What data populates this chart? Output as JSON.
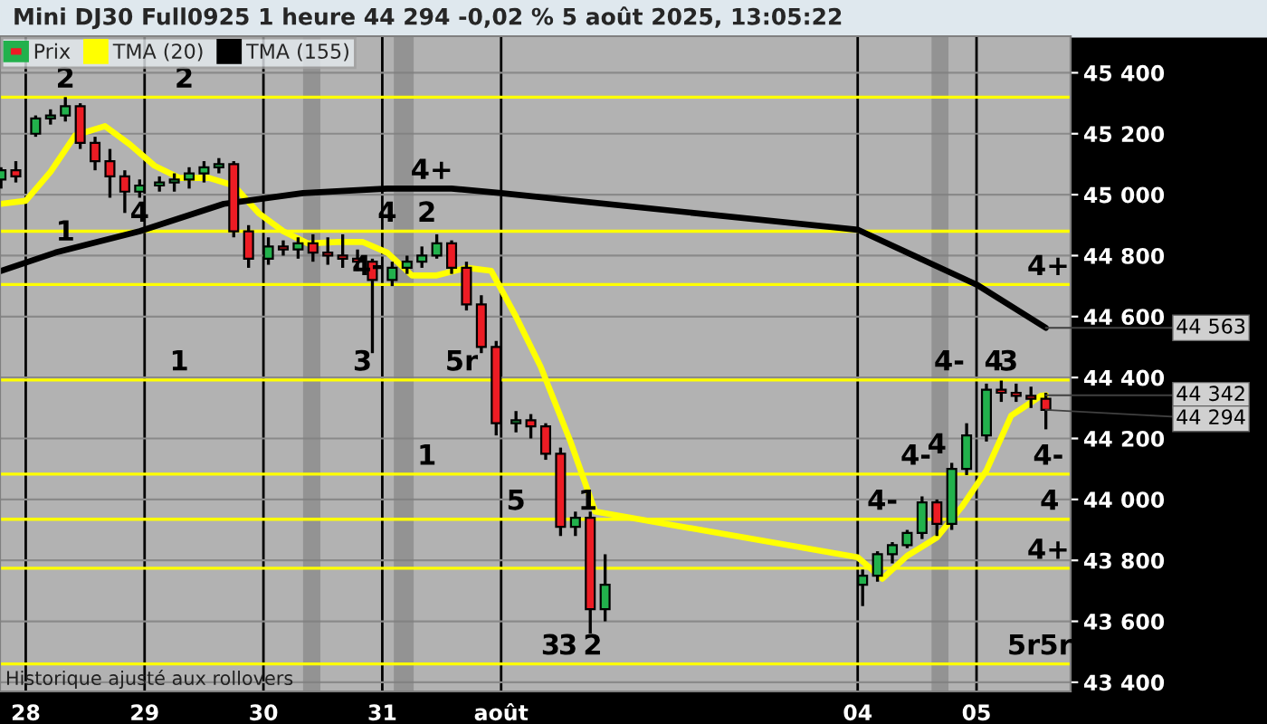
{
  "chart_data": {
    "type": "candlestick",
    "title": "Mini DJ30 Full0925 1 heure 44 294 -0,02 % 5 août 2025, 13:05:22",
    "series": [
      {
        "name": "Prix",
        "x": [
          "2025-07-27T19:00",
          "2025-07-27T22:00",
          "2025-07-28T02:00",
          "2025-07-28T05:00",
          "2025-07-28T08:00",
          "2025-07-28T11:00",
          "2025-07-28T14:00",
          "2025-07-28T17:00",
          "2025-07-28T20:00",
          "2025-07-28T23:00",
          "2025-07-29T03:00",
          "2025-07-29T06:00",
          "2025-07-29T09:00",
          "2025-07-29T12:00",
          "2025-07-29T15:00",
          "2025-07-29T18:00",
          "2025-07-29T21:00",
          "2025-07-30T01:00",
          "2025-07-30T04:00",
          "2025-07-30T07:00",
          "2025-07-30T10:00",
          "2025-07-30T13:00",
          "2025-07-30T16:00",
          "2025-07-30T19:00",
          "2025-07-30T22:00",
          "2025-07-31T02:00",
          "2025-07-31T05:00",
          "2025-07-31T08:00",
          "2025-07-31T11:00",
          "2025-07-31T14:00",
          "2025-07-31T17:00",
          "2025-07-31T20:00",
          "2025-07-31T23:00",
          "2025-08-01T03:00",
          "2025-08-01T06:00",
          "2025-08-01T09:00",
          "2025-08-01T12:00",
          "2025-08-01T15:00",
          "2025-08-01T18:00",
          "2025-08-01T21:00",
          "2025-08-04T01:00",
          "2025-08-04T04:00",
          "2025-08-04T07:00",
          "2025-08-04T10:00",
          "2025-08-04T13:00",
          "2025-08-04T16:00",
          "2025-08-04T19:00",
          "2025-08-04T22:00",
          "2025-08-05T02:00",
          "2025-08-05T05:00",
          "2025-08-05T08:00",
          "2025-08-05T11:00",
          "2025-08-05T14:00"
        ],
        "ohlc": [
          [
            45050,
            45090,
            45020,
            45080
          ],
          [
            45080,
            45110,
            45040,
            45060
          ],
          [
            45200,
            45260,
            45190,
            45250
          ],
          [
            45250,
            45280,
            45230,
            45260
          ],
          [
            45260,
            45320,
            45240,
            45290
          ],
          [
            45290,
            45300,
            45150,
            45170
          ],
          [
            45170,
            45190,
            45080,
            45110
          ],
          [
            45110,
            45150,
            44990,
            45060
          ],
          [
            45060,
            45080,
            44940,
            45010
          ],
          [
            45010,
            45050,
            44990,
            45030
          ],
          [
            45030,
            45060,
            45010,
            45040
          ],
          [
            45040,
            45070,
            45010,
            45050
          ],
          [
            45050,
            45090,
            45020,
            45070
          ],
          [
            45070,
            45110,
            45040,
            45090
          ],
          [
            45090,
            45120,
            45070,
            45100
          ],
          [
            45100,
            45110,
            44860,
            44880
          ],
          [
            44880,
            44900,
            44760,
            44790
          ],
          [
            44790,
            44860,
            44770,
            44830
          ],
          [
            44830,
            44850,
            44800,
            44820
          ],
          [
            44820,
            44860,
            44790,
            44840
          ],
          [
            44840,
            44870,
            44780,
            44810
          ],
          [
            44810,
            44860,
            44770,
            44800
          ],
          [
            44800,
            44870,
            44760,
            44790
          ],
          [
            44790,
            44820,
            44750,
            44780
          ],
          [
            44780,
            44790,
            44480,
            44720
          ],
          [
            44720,
            44780,
            44700,
            44760
          ],
          [
            44760,
            44800,
            44740,
            44780
          ],
          [
            44780,
            44830,
            44760,
            44800
          ],
          [
            44800,
            44870,
            44790,
            44840
          ],
          [
            44840,
            44850,
            44740,
            44760
          ],
          [
            44760,
            44780,
            44620,
            44640
          ],
          [
            44640,
            44670,
            44480,
            44500
          ],
          [
            44500,
            44520,
            44210,
            44250
          ],
          [
            44250,
            44290,
            44220,
            44260
          ],
          [
            44260,
            44280,
            44200,
            44240
          ],
          [
            44240,
            44250,
            44130,
            44150
          ],
          [
            44150,
            44170,
            43880,
            43910
          ],
          [
            43910,
            43960,
            43880,
            43940
          ],
          [
            43940,
            43960,
            43560,
            43640
          ],
          [
            43640,
            43820,
            43600,
            43720
          ],
          [
            43720,
            43770,
            43650,
            43750
          ],
          [
            43750,
            43830,
            43730,
            43820
          ],
          [
            43820,
            43860,
            43790,
            43850
          ],
          [
            43850,
            43900,
            43840,
            43890
          ],
          [
            43890,
            44010,
            43870,
            43990
          ],
          [
            43990,
            44000,
            43880,
            43920
          ],
          [
            43920,
            44120,
            43900,
            44100
          ],
          [
            44100,
            44250,
            44080,
            44210
          ],
          [
            44210,
            44380,
            44190,
            44360
          ],
          [
            44360,
            44390,
            44320,
            44350
          ],
          [
            44350,
            44380,
            44320,
            44340
          ],
          [
            44340,
            44370,
            44300,
            44330
          ],
          [
            44330,
            44350,
            44230,
            44294
          ]
        ],
        "colors": [
          "#22b14c",
          "#ed1c24",
          "#22b14c",
          "#22b14c",
          "#22b14c",
          "#ed1c24",
          "#ed1c24",
          "#ed1c24",
          "#ed1c24",
          "#22b14c",
          "#22b14c",
          "#22b14c",
          "#22b14c",
          "#22b14c",
          "#22b14c",
          "#ed1c24",
          "#ed1c24",
          "#22b14c",
          "#ed1c24",
          "#22b14c",
          "#ed1c24",
          "#ed1c24",
          "#ed1c24",
          "#ed1c24",
          "#ed1c24",
          "#22b14c",
          "#22b14c",
          "#22b14c",
          "#22b14c",
          "#ed1c24",
          "#ed1c24",
          "#ed1c24",
          "#ed1c24",
          "#22b14c",
          "#ed1c24",
          "#ed1c24",
          "#ed1c24",
          "#22b14c",
          "#ed1c24",
          "#22b14c",
          "#22b14c",
          "#22b14c",
          "#22b14c",
          "#22b14c",
          "#22b14c",
          "#ed1c24",
          "#22b14c",
          "#22b14c",
          "#22b14c",
          "#ed1c24",
          "#ed1c24",
          "#ed1c24",
          "#ed1c24"
        ]
      },
      {
        "name": "TMA (20)",
        "type": "line",
        "color": "#ffff00",
        "x": [
          "2025-07-27T19:00",
          "2025-07-28T00:00",
          "2025-07-28T05:00",
          "2025-07-28T10:00",
          "2025-07-28T16:00",
          "2025-07-28T21:00",
          "2025-07-29T02:00",
          "2025-07-29T07:00",
          "2025-07-29T13:00",
          "2025-07-29T18:00",
          "2025-07-29T23:00",
          "2025-07-30T04:00",
          "2025-07-30T09:00",
          "2025-07-30T15:00",
          "2025-07-30T20:00",
          "2025-07-31T01:00",
          "2025-07-31T06:00",
          "2025-07-31T11:00",
          "2025-07-31T17:00",
          "2025-07-31T22:00",
          "2025-08-01T03:00",
          "2025-08-01T08:00",
          "2025-08-01T14:00",
          "2025-08-01T19:00",
          "2025-08-04T00:00",
          "2025-08-04T05:00",
          "2025-08-04T10:00",
          "2025-08-04T16:00",
          "2025-08-04T21:00",
          "2025-08-05T02:00",
          "2025-08-05T07:00",
          "2025-08-05T13:00",
          "2025-08-05T14:00"
        ],
        "values": [
          44970,
          44980,
          45075,
          45195,
          45225,
          45165,
          45095,
          45055,
          45055,
          45030,
          44940,
          44880,
          44840,
          44845,
          44845,
          44810,
          44735,
          44735,
          44760,
          44750,
          44600,
          44435,
          44190,
          43960,
          43810,
          43740,
          43815,
          43875,
          43975,
          44095,
          44275,
          44340,
          44342
        ]
      },
      {
        "name": "TMA (155)",
        "type": "line",
        "color": "#000000",
        "x": [
          "2025-07-27T19:00",
          "2025-07-28T06:00",
          "2025-07-28T23:00",
          "2025-07-29T16:00",
          "2025-07-30T08:00",
          "2025-07-31T01:00",
          "2025-07-31T14:00",
          "2025-08-01T00:00",
          "2025-08-04T00:00",
          "2025-08-05T00:00",
          "2025-08-05T14:00"
        ],
        "values": [
          44750,
          44810,
          44880,
          44970,
          45005,
          45020,
          45020,
          45005,
          44885,
          44705,
          44563
        ]
      }
    ],
    "xlim": [
      "2025-07-27T18:48",
      "2025-08-05T19:00"
    ],
    "ylim": [
      43370,
      45520
    ],
    "xticks": [
      {
        "value": "2025-07-28",
        "label": "28"
      },
      {
        "value": "2025-07-29",
        "label": "29"
      },
      {
        "value": "2025-07-30",
        "label": "30"
      },
      {
        "value": "2025-07-31",
        "label": "31"
      },
      {
        "value": "2025-08-01",
        "label": "août"
      },
      {
        "value": "2025-08-04",
        "label": "04"
      },
      {
        "value": "2025-08-05",
        "label": "05"
      }
    ],
    "yticks": [
      {
        "value": 43400,
        "label": "43 400"
      },
      {
        "value": 43600,
        "label": "43 600"
      },
      {
        "value": 43800,
        "label": "43 800"
      },
      {
        "value": 44000,
        "label": "44 000"
      },
      {
        "value": 44200,
        "label": "44 200"
      },
      {
        "value": 44400,
        "label": "44 400"
      },
      {
        "value": 44600,
        "label": "44 600"
      },
      {
        "value": 44800,
        "label": "44 800"
      },
      {
        "value": 45000,
        "label": "45 000"
      },
      {
        "value": 45200,
        "label": "45 200"
      },
      {
        "value": 45400,
        "label": "45 400"
      }
    ],
    "grid": true,
    "legend": "top left",
    "ref_lines": [
      {
        "axis": "y",
        "value": 45320,
        "color": "#ffff00"
      },
      {
        "axis": "y",
        "value": 44880,
        "color": "#ffff00"
      },
      {
        "axis": "y",
        "value": 44705,
        "color": "#ffff00"
      },
      {
        "axis": "y",
        "value": 44392,
        "color": "#ffff00"
      },
      {
        "axis": "y",
        "value": 44083,
        "color": "#ffff00"
      },
      {
        "axis": "y",
        "value": 43935,
        "color": "#ffff00"
      },
      {
        "axis": "y",
        "value": 43774,
        "color": "#ffff00"
      },
      {
        "axis": "y",
        "value": 43460,
        "color": "#ffff00"
      }
    ],
    "bands": [
      {
        "axis": "x",
        "from": "2025-07-30T08:00",
        "to": "2025-07-30T11:30",
        "color": "#7f7f7f"
      },
      {
        "axis": "x",
        "from": "2025-07-31T02:20",
        "to": "2025-07-31T06:20",
        "color": "#7f7f7f"
      },
      {
        "axis": "x",
        "from": "2025-08-04T14:55",
        "to": "2025-08-04T18:20",
        "color": "#7f7f7f"
      }
    ],
    "annotations": [
      {
        "text": "2",
        "x": "2025-07-28T08:00",
        "y": 45320
      },
      {
        "text": "1",
        "x": "2025-07-28T08:00",
        "y": 44818
      },
      {
        "text": "2",
        "x": "2025-07-29T08:00",
        "y": 45320
      },
      {
        "text": "4",
        "x": "2025-07-28T23:00",
        "y": 44880
      },
      {
        "text": "4+",
        "x": "2025-07-31T10:00",
        "y": 45020
      },
      {
        "text": "4",
        "x": "2025-07-31T01:00",
        "y": 44880
      },
      {
        "text": "4-",
        "x": "2025-07-30T21:00",
        "y": 44705
      },
      {
        "text": "2",
        "x": "2025-07-31T09:00",
        "y": 44880
      },
      {
        "text": "3",
        "x": "2025-07-30T20:00",
        "y": 44392
      },
      {
        "text": "5r",
        "x": "2025-07-31T16:00",
        "y": 44392
      },
      {
        "text": "1",
        "x": "2025-07-29T07:00",
        "y": 44392
      },
      {
        "text": "1",
        "x": "2025-07-31T09:00",
        "y": 44083
      },
      {
        "text": "5",
        "x": "2025-08-01T03:00",
        "y": 43935
      },
      {
        "text": "1",
        "x": "2025-08-01T17:30",
        "y": 43935
      },
      {
        "text": "2",
        "x": "2025-08-01T18:30",
        "y": 43460
      },
      {
        "text": "3",
        "x": "2025-08-01T10:00",
        "y": 43460
      },
      {
        "text": "3",
        "x": "2025-08-01T13:30",
        "y": 43460
      },
      {
        "text": "4-",
        "x": "2025-08-04T05:00",
        "y": 43935
      },
      {
        "text": "4-",
        "x": "2025-08-04T11:45",
        "y": 44083
      },
      {
        "text": "4",
        "x": "2025-08-04T16:00",
        "y": 44120
      },
      {
        "text": "4-",
        "x": "2025-08-04T18:30",
        "y": 44392
      },
      {
        "text": "4",
        "x": "2025-08-05T03:30",
        "y": 44392
      },
      {
        "text": "3",
        "x": "2025-08-05T06:30",
        "y": 44392
      },
      {
        "text": "4+",
        "x": "2025-08-05T14:30",
        "y": 44705
      },
      {
        "text": "4-",
        "x": "2025-08-05T14:30",
        "y": 44083
      },
      {
        "text": "4",
        "x": "2025-08-05T14:45",
        "y": 43935
      },
      {
        "text": "4+",
        "x": "2025-08-05T14:30",
        "y": 43774
      },
      {
        "text": "5r",
        "x": "2025-08-05T09:30",
        "y": 43460
      },
      {
        "text": "5r",
        "x": "2025-08-05T16:00",
        "y": 43460
      },
      {
        "text": "44 563",
        "x": "2025-08-05T14:00",
        "y": 44563
      },
      {
        "text": "44 342",
        "x": "2025-08-05T14:00",
        "y": 44342
      },
      {
        "text": "44 294",
        "x": "2025-08-05T14:00",
        "y": 44294
      },
      "Historique ajusté aux rollovers"
    ]
  }
}
